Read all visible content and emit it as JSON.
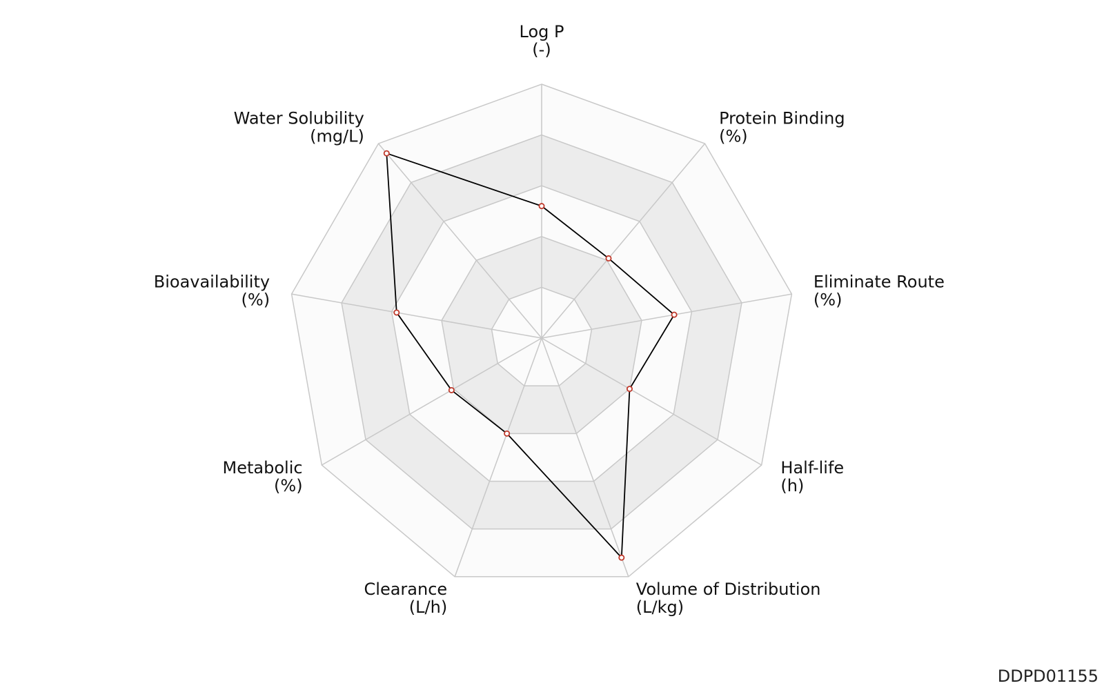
{
  "chart_data": {
    "type": "radar",
    "identifier": "DDPD01155",
    "rings": 5,
    "grid": true,
    "colors": {
      "ring_fill_light": "#fbfbfb",
      "ring_fill_dark": "#ececec",
      "grid_line": "#c8c8c8",
      "series_line": "#000000",
      "marker_stroke": "#c0392b",
      "marker_fill": "#ffffff"
    },
    "axes": [
      {
        "name": "Log P",
        "unit": "(-)"
      },
      {
        "name": "Protein Binding",
        "unit": "(%)"
      },
      {
        "name": "Eliminate Route",
        "unit": "(%)"
      },
      {
        "name": "Half-life",
        "unit": "(h)"
      },
      {
        "name": "Volume of Distribution",
        "unit": "(L/kg)"
      },
      {
        "name": "Clearance",
        "unit": "(L/h)"
      },
      {
        "name": "Metabolic",
        "unit": "(%)"
      },
      {
        "name": "Bioavailability",
        "unit": "(%)"
      },
      {
        "name": "Water Solubility",
        "unit": "(mg/L)"
      }
    ],
    "scale": [
      0,
      1
    ],
    "values": [
      0.52,
      0.41,
      0.53,
      0.4,
      0.92,
      0.4,
      0.41,
      0.58,
      0.95
    ]
  }
}
